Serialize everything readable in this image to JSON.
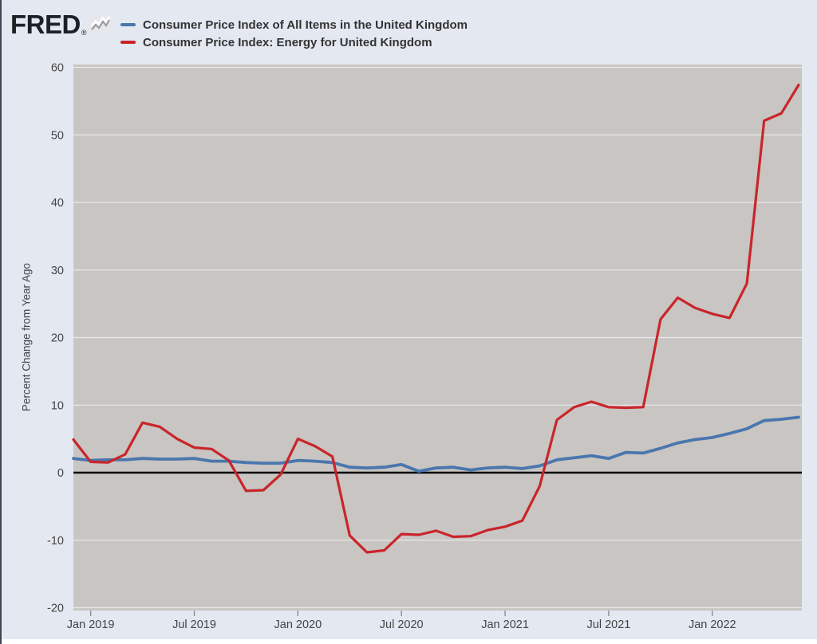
{
  "header": {
    "logo_text": "FRED",
    "logo_registered": "®",
    "logo_icon": "fred-sparkline-icon"
  },
  "legend": {
    "items": [
      {
        "label": "Consumer Price Index of All Items in the United Kingdom",
        "color": "#4a76ae"
      },
      {
        "label": "Consumer Price Index: Energy for United Kingdom",
        "color": "#c9252a"
      }
    ]
  },
  "colors": {
    "page_background": "#e3e8f1",
    "plot_background": "#c8c5c2",
    "gridline": "#e9e9e9",
    "zero_line": "#000000",
    "axis_text": "#444444",
    "tick_mark": "#888888",
    "blue_series": "#4a76ae",
    "red_series": "#c9252a"
  },
  "chart_data": {
    "type": "line",
    "title": "",
    "xlabel": "",
    "ylabel": "Percent Change from Year Ago",
    "ylim": [
      -20,
      60
    ],
    "y_ticks": [
      -20,
      -10,
      0,
      10,
      20,
      30,
      40,
      50,
      60
    ],
    "grid": "horizontal gridlines every 10, black line at 0",
    "legend_position": "top-left header",
    "frequency": "monthly",
    "x": [
      "2018-12",
      "2019-01",
      "2019-02",
      "2019-03",
      "2019-04",
      "2019-05",
      "2019-06",
      "2019-07",
      "2019-08",
      "2019-09",
      "2019-10",
      "2019-11",
      "2019-12",
      "2020-01",
      "2020-02",
      "2020-03",
      "2020-04",
      "2020-05",
      "2020-06",
      "2020-07",
      "2020-08",
      "2020-09",
      "2020-10",
      "2020-11",
      "2020-12",
      "2021-01",
      "2021-02",
      "2021-03",
      "2021-04",
      "2021-05",
      "2021-06",
      "2021-07",
      "2021-08",
      "2021-09",
      "2021-10",
      "2021-11",
      "2021-12",
      "2022-01",
      "2022-02",
      "2022-03",
      "2022-04",
      "2022-05",
      "2022-06"
    ],
    "x_ticks": [
      {
        "label": "Jan 2019",
        "month_index": 1
      },
      {
        "label": "Jul 2019",
        "month_index": 7
      },
      {
        "label": "Jan 2020",
        "month_index": 13
      },
      {
        "label": "Jul 2020",
        "month_index": 19
      },
      {
        "label": "Jan 2021",
        "month_index": 25
      },
      {
        "label": "Jul 2021",
        "month_index": 31
      },
      {
        "label": "Jan 2022",
        "month_index": 37
      }
    ],
    "series": [
      {
        "name": "Consumer Price Index of All Items in the United Kingdom",
        "color": "#4a76ae",
        "values": [
          2.1,
          1.8,
          1.9,
          1.9,
          2.1,
          2.0,
          2.0,
          2.1,
          1.7,
          1.7,
          1.5,
          1.4,
          1.4,
          1.8,
          1.7,
          1.5,
          0.8,
          0.7,
          0.8,
          1.2,
          0.2,
          0.7,
          0.8,
          0.4,
          0.7,
          0.8,
          0.6,
          1.0,
          1.9,
          2.2,
          2.5,
          2.1,
          3.0,
          2.9,
          3.6,
          4.4,
          4.9,
          5.2,
          5.8,
          6.5,
          7.7,
          7.9,
          8.2
        ]
      },
      {
        "name": "Consumer Price Index: Energy for United Kingdom",
        "color": "#c9252a",
        "values": [
          4.9,
          1.6,
          1.5,
          2.7,
          7.4,
          6.8,
          5.0,
          3.7,
          3.5,
          1.8,
          -2.7,
          -2.6,
          -0.3,
          5.0,
          3.9,
          2.4,
          -9.3,
          -11.8,
          -11.5,
          -9.1,
          -9.2,
          -8.6,
          -9.5,
          -9.4,
          -8.5,
          -8.0,
          -7.1,
          -2.0,
          7.8,
          9.7,
          10.5,
          9.7,
          9.6,
          9.7,
          22.7,
          25.9,
          24.4,
          23.5,
          22.9,
          28.0,
          52.1,
          53.2,
          57.4
        ]
      }
    ]
  }
}
